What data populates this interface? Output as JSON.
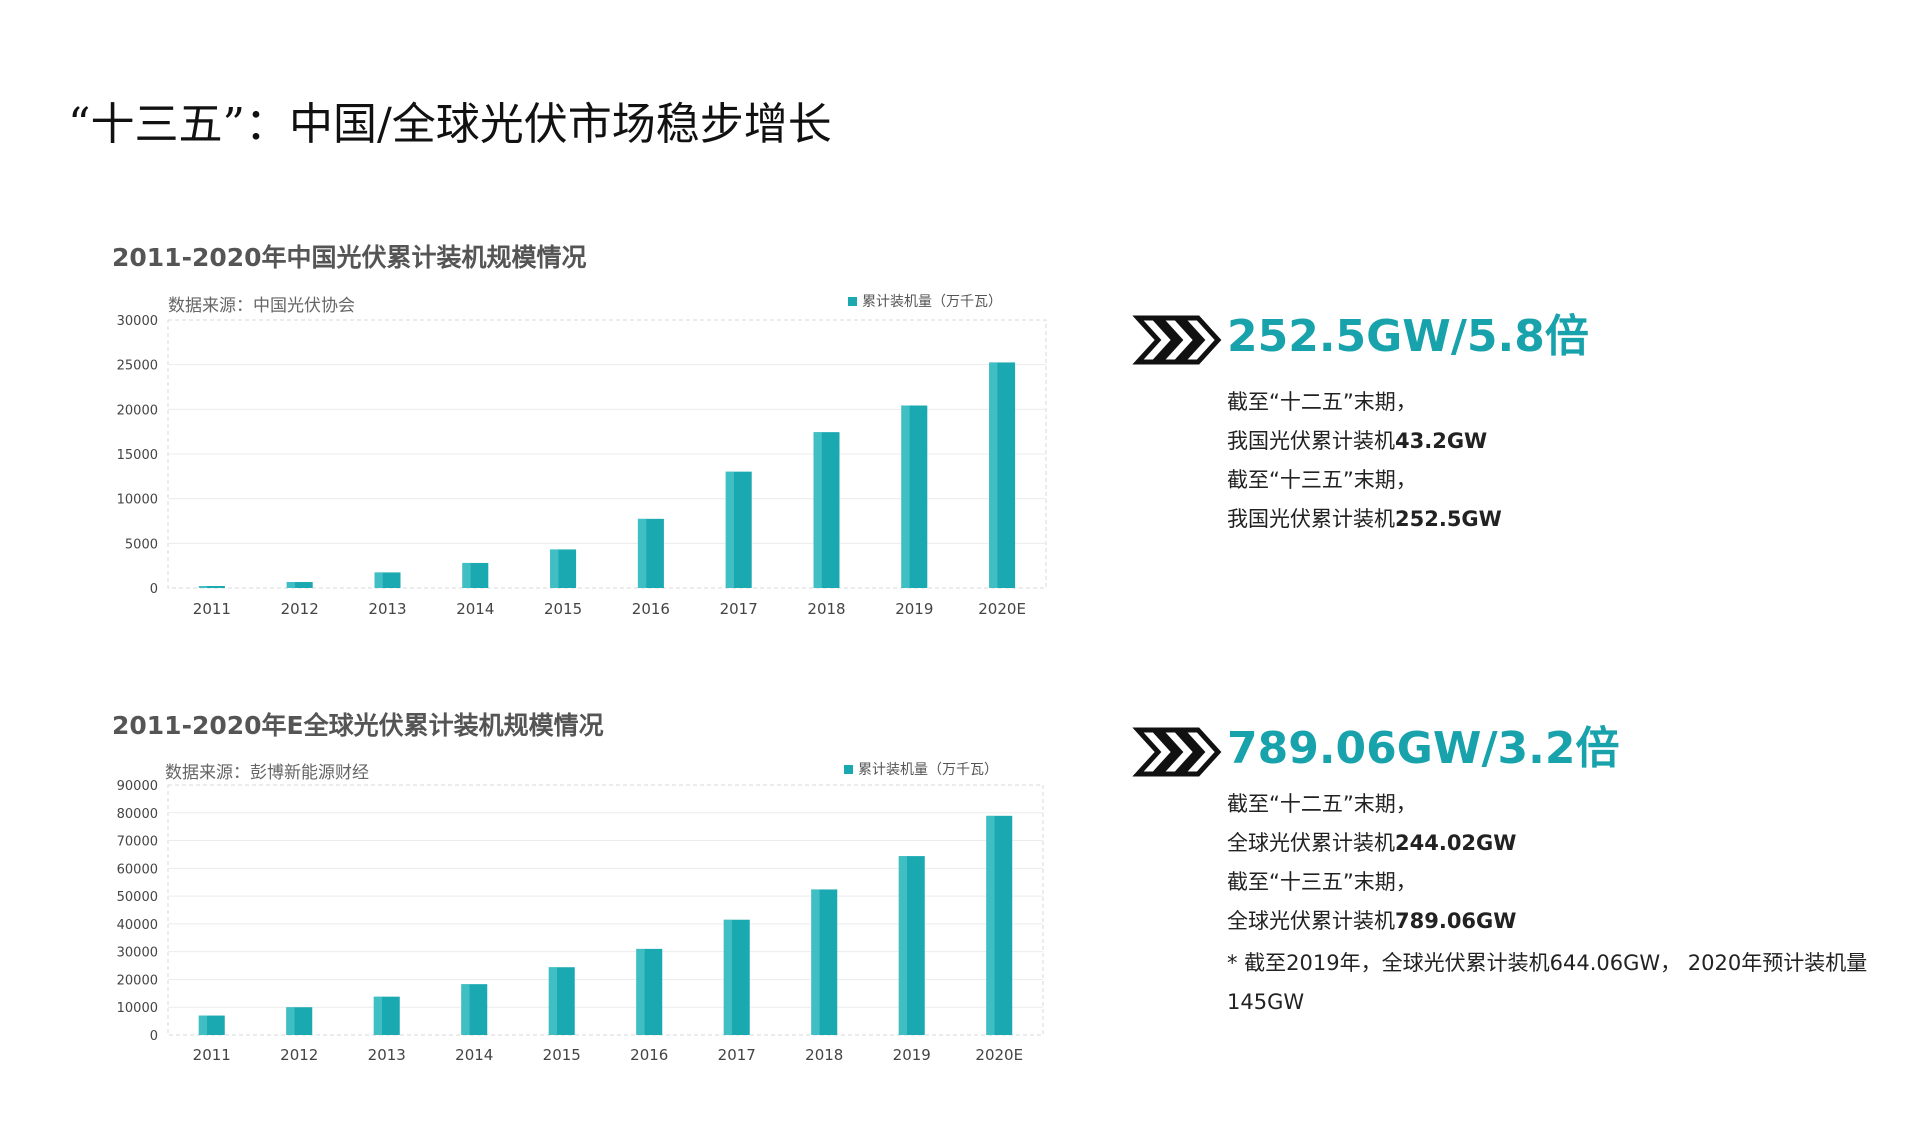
{
  "page": {
    "title": "“十三五”：中国/全球光伏市场稳步增长"
  },
  "chart_data": [
    {
      "type": "bar",
      "title": "2011-2020年中国光伏累计装机规模情况",
      "source": "数据来源：中国光伏协会",
      "legend": "累计装机量（万千瓦）",
      "categories": [
        "2011",
        "2012",
        "2013",
        "2014",
        "2015",
        "2016",
        "2017",
        "2018",
        "2019",
        "2020E"
      ],
      "series": [
        {
          "name": "累计装机量（万千瓦）",
          "values": [
            222,
            670,
            1745,
            2805,
            4318,
            7742,
            13025,
            17446,
            20430,
            25250
          ]
        }
      ],
      "ylim": [
        0,
        30000
      ],
      "yticks": [
        0,
        5000,
        10000,
        15000,
        20000,
        25000,
        30000
      ],
      "color": "#1aa9b0",
      "grid": true,
      "legend_position": "top-right"
    },
    {
      "type": "bar",
      "title": "2011-2020年E全球光伏累计装机规模情况",
      "source": "数据来源：彭博新能源财经",
      "legend": "累计装机量（万千瓦）",
      "categories": [
        "2011",
        "2012",
        "2013",
        "2014",
        "2015",
        "2016",
        "2017",
        "2018",
        "2019",
        "2020E"
      ],
      "series": [
        {
          "name": "累计装机量（万千瓦）",
          "values": [
            7000,
            10000,
            13800,
            18300,
            24402,
            31000,
            41500,
            52400,
            64406,
            78906
          ]
        }
      ],
      "ylim": [
        0,
        90000
      ],
      "yticks": [
        0,
        10000,
        20000,
        30000,
        40000,
        50000,
        60000,
        70000,
        80000,
        90000
      ],
      "color": "#1aa9b0",
      "grid": true,
      "legend_position": "top-right"
    }
  ],
  "stats": [
    {
      "value": "252.5GW/5.8倍",
      "lines": [
        {
          "text": "截至“十二五”末期，",
          "bold": ""
        },
        {
          "text": "我国光伏累计装机",
          "bold": "43.2GW"
        },
        {
          "text": "截至“十三五”末期，",
          "bold": ""
        },
        {
          "text": "我国光伏累计装机",
          "bold": "252.5GW"
        }
      ]
    },
    {
      "value": "789.06GW/3.2倍",
      "lines": [
        {
          "text": "截至“十二五”末期，",
          "bold": ""
        },
        {
          "text": "全球光伏累计装机",
          "bold": "244.02GW"
        },
        {
          "text": "截至“十三五”末期，",
          "bold": ""
        },
        {
          "text": "全球光伏累计装机",
          "bold": "789.06GW"
        }
      ],
      "footnote": "* 截至2019年，全球光伏累计装机644.06GW， 2020年预计装机量145GW"
    }
  ],
  "colors": {
    "accent": "#18a2ab",
    "bar": "#1aa9b0",
    "bar_highlight": "#5fd0d5"
  }
}
